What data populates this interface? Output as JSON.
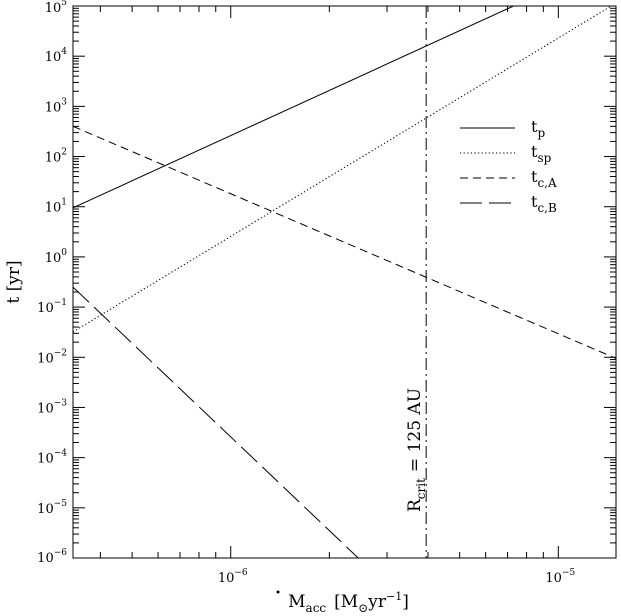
{
  "chart_data": {
    "type": "line",
    "xscale": "log",
    "yscale": "log",
    "xlim": [
      3.3e-07,
      1.5e-05
    ],
    "ylim": [
      1e-06,
      100000.0
    ],
    "xlabel": {
      "main": "M",
      "sub": "acc",
      "units": "[M",
      "units_sub": "⊙",
      "units_rest": "yr",
      "units_sup": "−1",
      "units_end": "]"
    },
    "ylabel": "t [yr]",
    "x_ticks": [
      {
        "value": 1e-06,
        "base": "10",
        "exp": "−6"
      },
      {
        "value": 1e-05,
        "base": "10",
        "exp": "−5"
      }
    ],
    "y_ticks": [
      {
        "value": 1e-06,
        "base": "10",
        "exp": "−6"
      },
      {
        "value": 1e-05,
        "base": "10",
        "exp": "−5"
      },
      {
        "value": 0.0001,
        "base": "10",
        "exp": "−4"
      },
      {
        "value": 0.001,
        "base": "10",
        "exp": "−3"
      },
      {
        "value": 0.01,
        "base": "10",
        "exp": "−2"
      },
      {
        "value": 0.1,
        "base": "10",
        "exp": "−1"
      },
      {
        "value": 1.0,
        "base": "10",
        "exp": "0"
      },
      {
        "value": 10.0,
        "base": "10",
        "exp": "1"
      },
      {
        "value": 100.0,
        "base": "10",
        "exp": "2"
      },
      {
        "value": 1000.0,
        "base": "10",
        "exp": "3"
      },
      {
        "value": 10000.0,
        "base": "10",
        "exp": "4"
      },
      {
        "value": 100000.0,
        "base": "10",
        "exp": "5"
      }
    ],
    "series": [
      {
        "name": "t_p",
        "label_main": "t",
        "label_sub": "p",
        "dash": "solid",
        "points": [
          [
            3.3e-07,
            9.5
          ],
          [
            7.3e-06,
            100000.0
          ]
        ]
      },
      {
        "name": "t_sp",
        "label_main": "t",
        "label_sub": "sp",
        "dash": "dotted",
        "points": [
          [
            3.3e-07,
            0.032
          ],
          [
            1.45e-05,
            100000.0
          ]
        ]
      },
      {
        "name": "t_c,A",
        "label_main": "t",
        "label_sub": "c,A",
        "dash": "short-dash",
        "points": [
          [
            3.3e-07,
            400
          ],
          [
            1.5e-05,
            0.0095
          ]
        ]
      },
      {
        "name": "t_c,B",
        "label_main": "t",
        "label_sub": "c,B",
        "dash": "long-dash",
        "points": [
          [
            3.3e-07,
            0.25
          ],
          [
            2.45e-06,
            1e-06
          ]
        ]
      }
    ],
    "vertical_line": {
      "x": 3.95e-06,
      "dash": "dash-dot"
    },
    "annotation": {
      "main": "R",
      "sub": "crit",
      "rest": "= 125 AU"
    },
    "legend": {
      "placement": "right"
    },
    "grid": false
  }
}
